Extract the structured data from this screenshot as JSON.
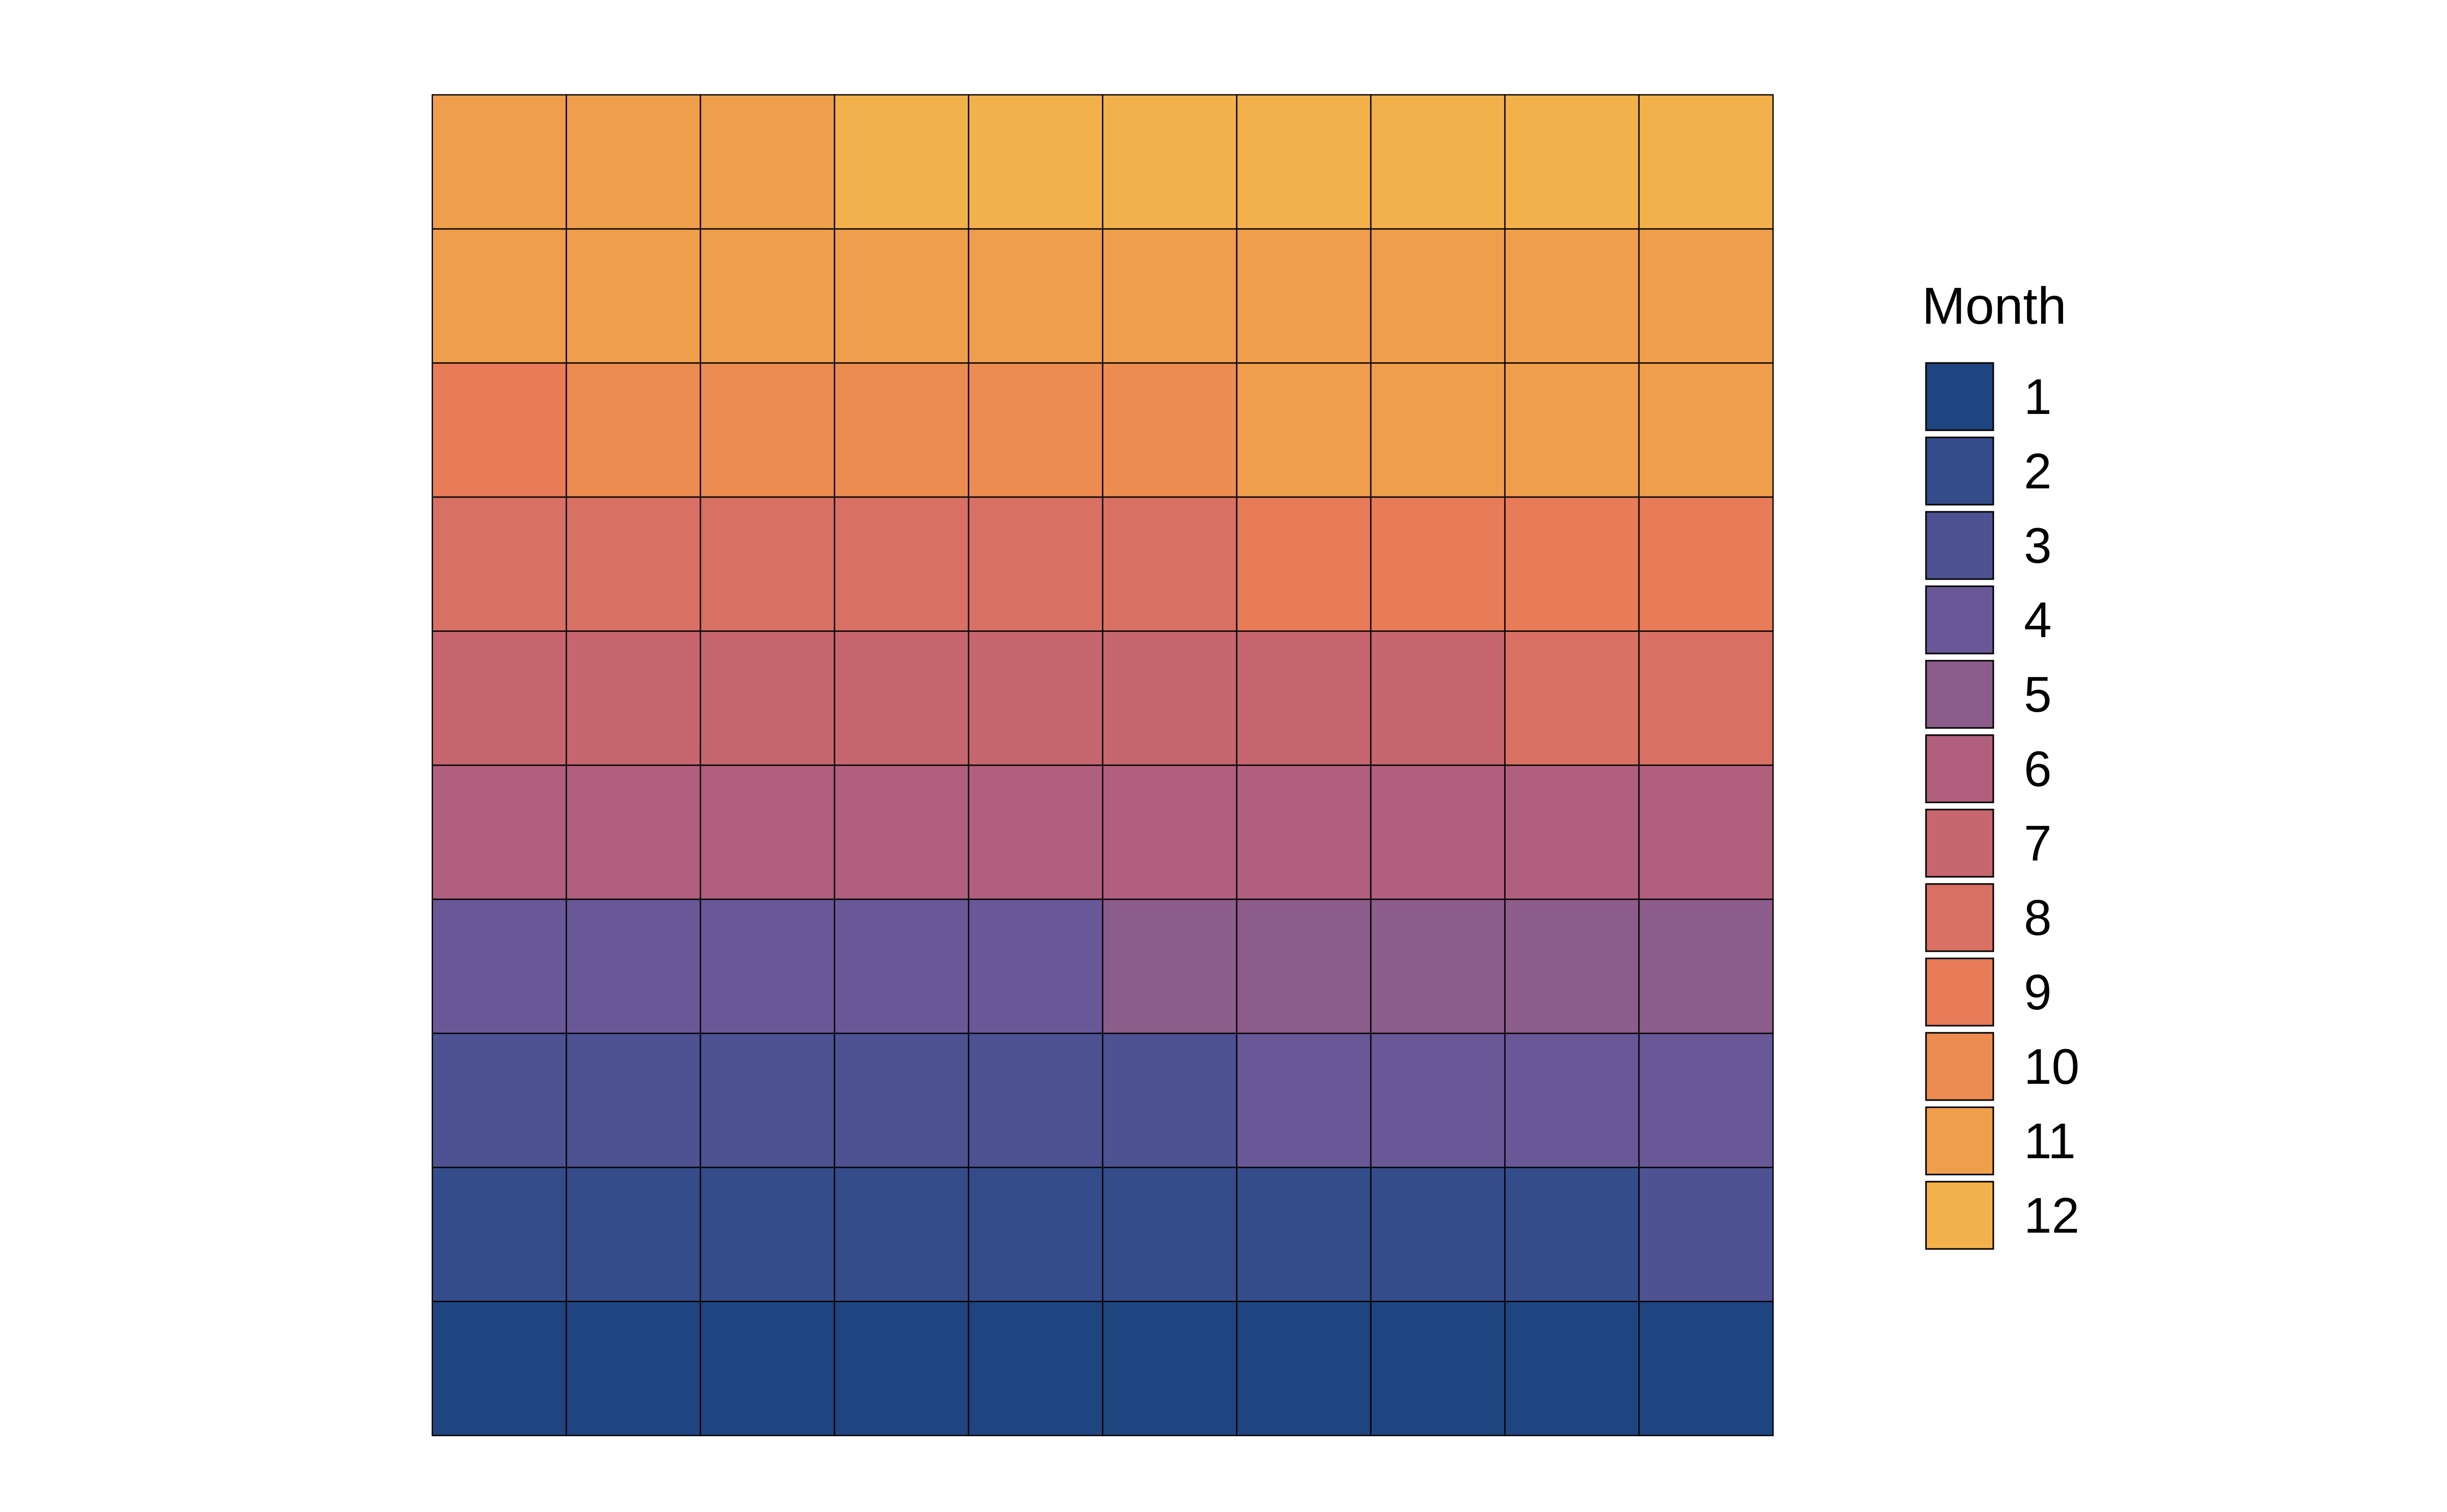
{
  "chart_data": {
    "type": "heatmap",
    "subtype": "waffle",
    "title": "",
    "xlabel": "",
    "ylabel": "",
    "grid": false,
    "axes_visible": false,
    "rows": 10,
    "columns": 10,
    "fill_order": "row-wise from bottom-left, left to right",
    "legend": {
      "title": "Month",
      "position": "right",
      "items": [
        {
          "label": "1",
          "color": "#1F4580",
          "count": 10
        },
        {
          "label": "2",
          "color": "#344C89",
          "count": 9
        },
        {
          "label": "3",
          "color": "#4E5292",
          "count": 7
        },
        {
          "label": "4",
          "color": "#695898",
          "count": 9
        },
        {
          "label": "5",
          "color": "#8C5C8A",
          "count": 5
        },
        {
          "label": "6",
          "color": "#B05F7D",
          "count": 10
        },
        {
          "label": "7",
          "color": "#C7666E",
          "count": 8
        },
        {
          "label": "8",
          "color": "#D87063",
          "count": 8
        },
        {
          "label": "9",
          "color": "#E87B58",
          "count": 5
        },
        {
          "label": "10",
          "color": "#EC8C51",
          "count": 5
        },
        {
          "label": "11",
          "color": "#EF9E4C",
          "count": 17
        },
        {
          "label": "12",
          "color": "#F3B14B",
          "count": 7
        }
      ]
    },
    "cell_border_color": "#000000"
  }
}
